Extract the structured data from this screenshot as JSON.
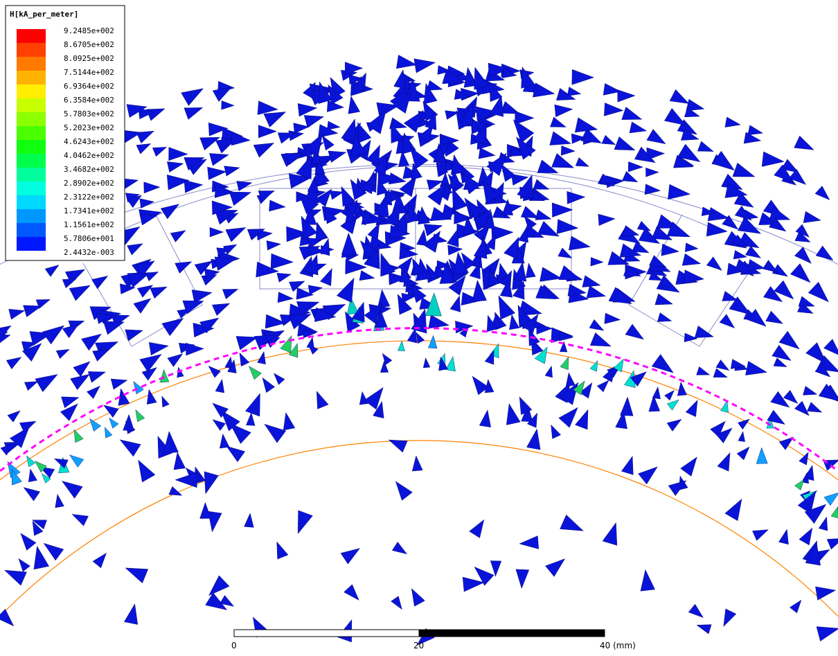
{
  "legend": {
    "title": "H[kA_per_meter]",
    "labels": [
      "9.2485e+002",
      "8.6705e+002",
      "8.0925e+002",
      "7.5144e+002",
      "6.9364e+002",
      "6.3584e+002",
      "5.7803e+002",
      "5.2023e+002",
      "4.6243e+002",
      "4.0462e+002",
      "3.4682e+002",
      "2.8902e+002",
      "2.3122e+002",
      "1.7341e+002",
      "1.1561e+002",
      "5.7806e+001",
      "2.4432e-003"
    ],
    "colors": [
      "#ff0000",
      "#ff4000",
      "#ff7a00",
      "#ffb300",
      "#ffee00",
      "#c8ff00",
      "#8cff00",
      "#4cff00",
      "#10ff10",
      "#00ff4c",
      "#00ff9c",
      "#00ffe0",
      "#00d8ff",
      "#0098ff",
      "#0058ff",
      "#0018ff"
    ]
  },
  "scale_bar": {
    "labels": [
      "0",
      "20",
      "40 (mm)"
    ]
  }
}
